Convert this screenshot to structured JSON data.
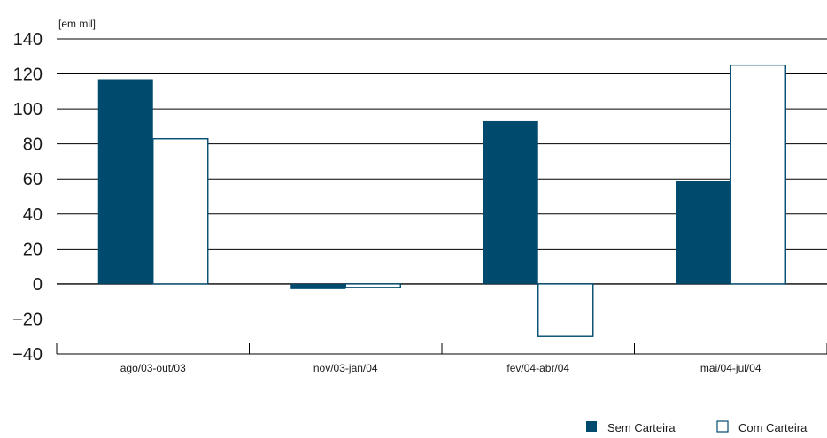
{
  "chart_data": {
    "type": "bar",
    "unit_label": "[em mil]",
    "categories": [
      "ago/03-out/03",
      "nov/03-jan/04",
      "fev/04-abr/04",
      "mai/04-jul/04"
    ],
    "series": [
      {
        "name": "Sem Carteira",
        "values": [
          117,
          -3,
          93,
          59
        ],
        "color": "#004a6e",
        "style": "filled"
      },
      {
        "name": "Com Carteira",
        "values": [
          83,
          -2,
          -30,
          125
        ],
        "color": "#004a6e",
        "style": "outline"
      }
    ],
    "ylim": [
      -40,
      140
    ],
    "yticks": [
      140,
      120,
      100,
      80,
      60,
      40,
      20,
      0,
      -20,
      -40
    ],
    "ytick_labels": [
      "140",
      "120",
      "100",
      "80",
      "60",
      "40",
      "20",
      "0",
      "−20",
      "−40"
    ],
    "grid": true,
    "legend_position": "bottom-right"
  }
}
